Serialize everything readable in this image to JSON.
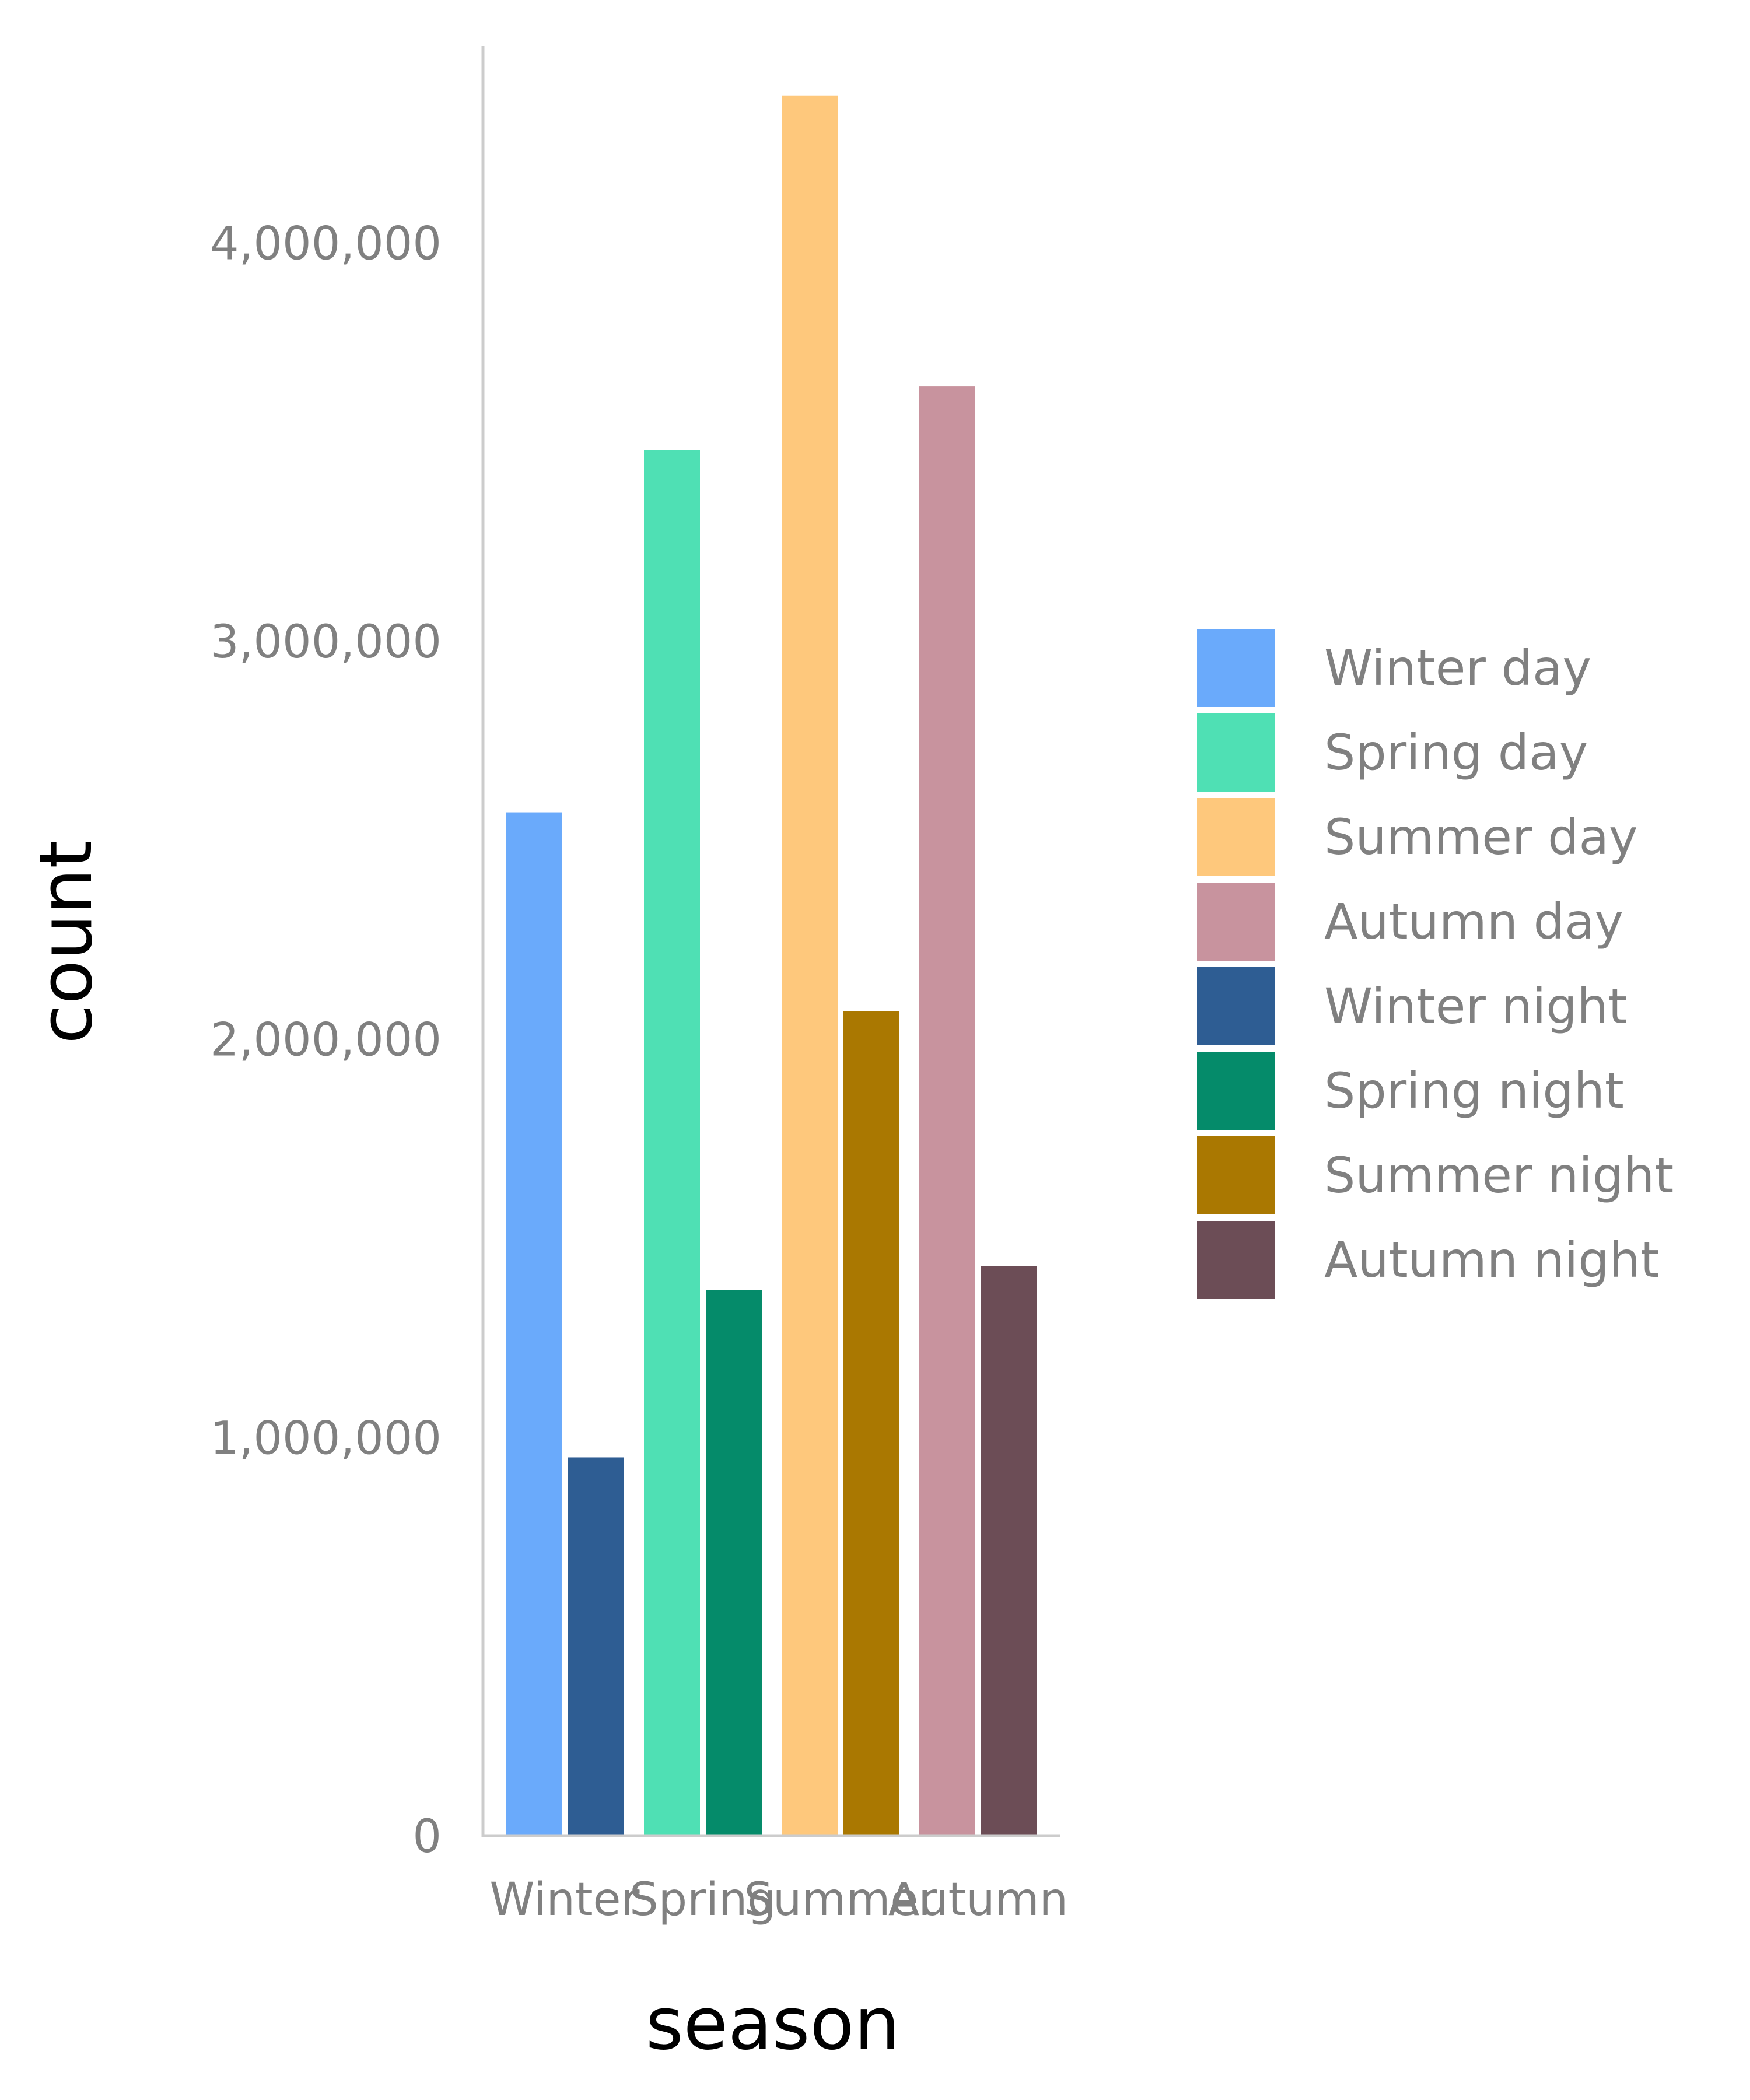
{
  "chart_data": {
    "type": "bar",
    "title": "",
    "xlabel": "season",
    "ylabel": "count",
    "categories": [
      "Winter",
      "Spring",
      "Summer",
      "Autumn"
    ],
    "ylim": [
      0,
      4450000
    ],
    "y_ticks": [
      0,
      1000000,
      2000000,
      3000000,
      4000000
    ],
    "y_tick_labels": [
      "0",
      "1,000,000",
      "2,000,000",
      "3,000,000",
      "4,000,000"
    ],
    "grid": false,
    "legend_position": "right",
    "series": [
      {
        "name": "day",
        "values": [
          2570000,
          3480000,
          4370000,
          3640000
        ]
      },
      {
        "name": "night",
        "values": [
          950000,
          1370000,
          2070000,
          1430000
        ]
      }
    ],
    "legend": [
      {
        "label": "Winter day",
        "color": "#6aaafb"
      },
      {
        "label": "Spring day",
        "color": "#4fe0b4"
      },
      {
        "label": "Summer day",
        "color": "#fec87c"
      },
      {
        "label": "Autumn day",
        "color": "#c8939e"
      },
      {
        "label": "Winter night",
        "color": "#2e5d93"
      },
      {
        "label": "Spring night",
        "color": "#058b6a"
      },
      {
        "label": "Summer night",
        "color": "#aa7801"
      },
      {
        "label": "Autumn night",
        "color": "#6c4d56"
      }
    ],
    "bar_colors": {
      "Winter": {
        "day": "#6aaafb",
        "night": "#2e5d93"
      },
      "Spring": {
        "day": "#4fe0b4",
        "night": "#058b6a"
      },
      "Summer": {
        "day": "#fec87c",
        "night": "#aa7801"
      },
      "Autumn": {
        "day": "#c8939e",
        "night": "#6c4d56"
      }
    },
    "axis_color": "#cccccc"
  }
}
